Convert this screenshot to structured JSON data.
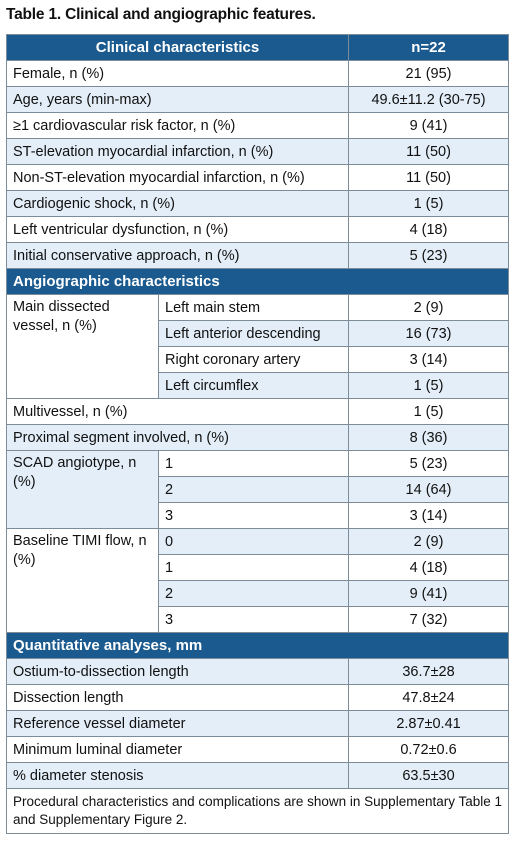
{
  "caption": "Table 1. Clinical and angiographic features.",
  "header": {
    "title": "Clinical characteristics",
    "n": "n=22"
  },
  "clinical": [
    {
      "label": "Female, n (%)",
      "value": "21 (95)"
    },
    {
      "label": "Age, years (min-max)",
      "value": "49.6±11.2 (30-75)"
    },
    {
      "label": "≥1 cardiovascular risk factor, n (%)",
      "value": "9 (41)"
    },
    {
      "label": "ST-elevation myocardial infarction, n (%)",
      "value": "11 (50)"
    },
    {
      "label": "Non-ST-elevation myocardial infarction, n (%)",
      "value": "11 (50)"
    },
    {
      "label": "Cardiogenic shock, n (%)",
      "value": "1 (5)"
    },
    {
      "label": "Left ventricular dysfunction, n (%)",
      "value": "4 (18)"
    },
    {
      "label": "Initial conservative approach, n (%)",
      "value": "5 (23)"
    }
  ],
  "angio_header": "Angiographic characteristics",
  "main_vessel": {
    "label": "Main dissected vessel, n (%)",
    "rows": [
      {
        "sub": "Left main stem",
        "value": "2 (9)"
      },
      {
        "sub": "Left anterior descending",
        "value": "16 (73)"
      },
      {
        "sub": "Right coronary artery",
        "value": "3 (14)"
      },
      {
        "sub": "Left circumflex",
        "value": "1 (5)"
      }
    ]
  },
  "multivessel": {
    "label": "Multivessel, n (%)",
    "value": "1 (5)"
  },
  "proximal": {
    "label": "Proximal segment involved, n (%)",
    "value": "8 (36)"
  },
  "angiotype": {
    "label": "SCAD angiotype, n (%)",
    "rows": [
      {
        "sub": "1",
        "value": "5 (23)"
      },
      {
        "sub": "2",
        "value": "14 (64)"
      },
      {
        "sub": "3",
        "value": "3 (14)"
      }
    ]
  },
  "timi": {
    "label": "Baseline TIMI flow, n (%)",
    "rows": [
      {
        "sub": "0",
        "value": "2 (9)"
      },
      {
        "sub": "1",
        "value": "4 (18)"
      },
      {
        "sub": "2",
        "value": "9 (41)"
      },
      {
        "sub": "3",
        "value": "7 (32)"
      }
    ]
  },
  "quant_header": "Quantitative analyses, mm",
  "quant": [
    {
      "label": "Ostium-to-dissection length",
      "value": "36.7±28"
    },
    {
      "label": "Dissection length",
      "value": "47.8±24"
    },
    {
      "label": "Reference vessel diameter",
      "value": "2.87±0.41"
    },
    {
      "label": "Minimum luminal diameter",
      "value": "0.72±0.6"
    },
    {
      "label": "% diameter stenosis",
      "value": "63.5±30"
    }
  ],
  "footnote": "Procedural characteristics and complications are shown in Supplementary Table 1 and Supplementary Figure 2.",
  "colors": {
    "header": "#1a5a8e",
    "row_alt": "#e3eef8",
    "border": "#7c8c99"
  }
}
